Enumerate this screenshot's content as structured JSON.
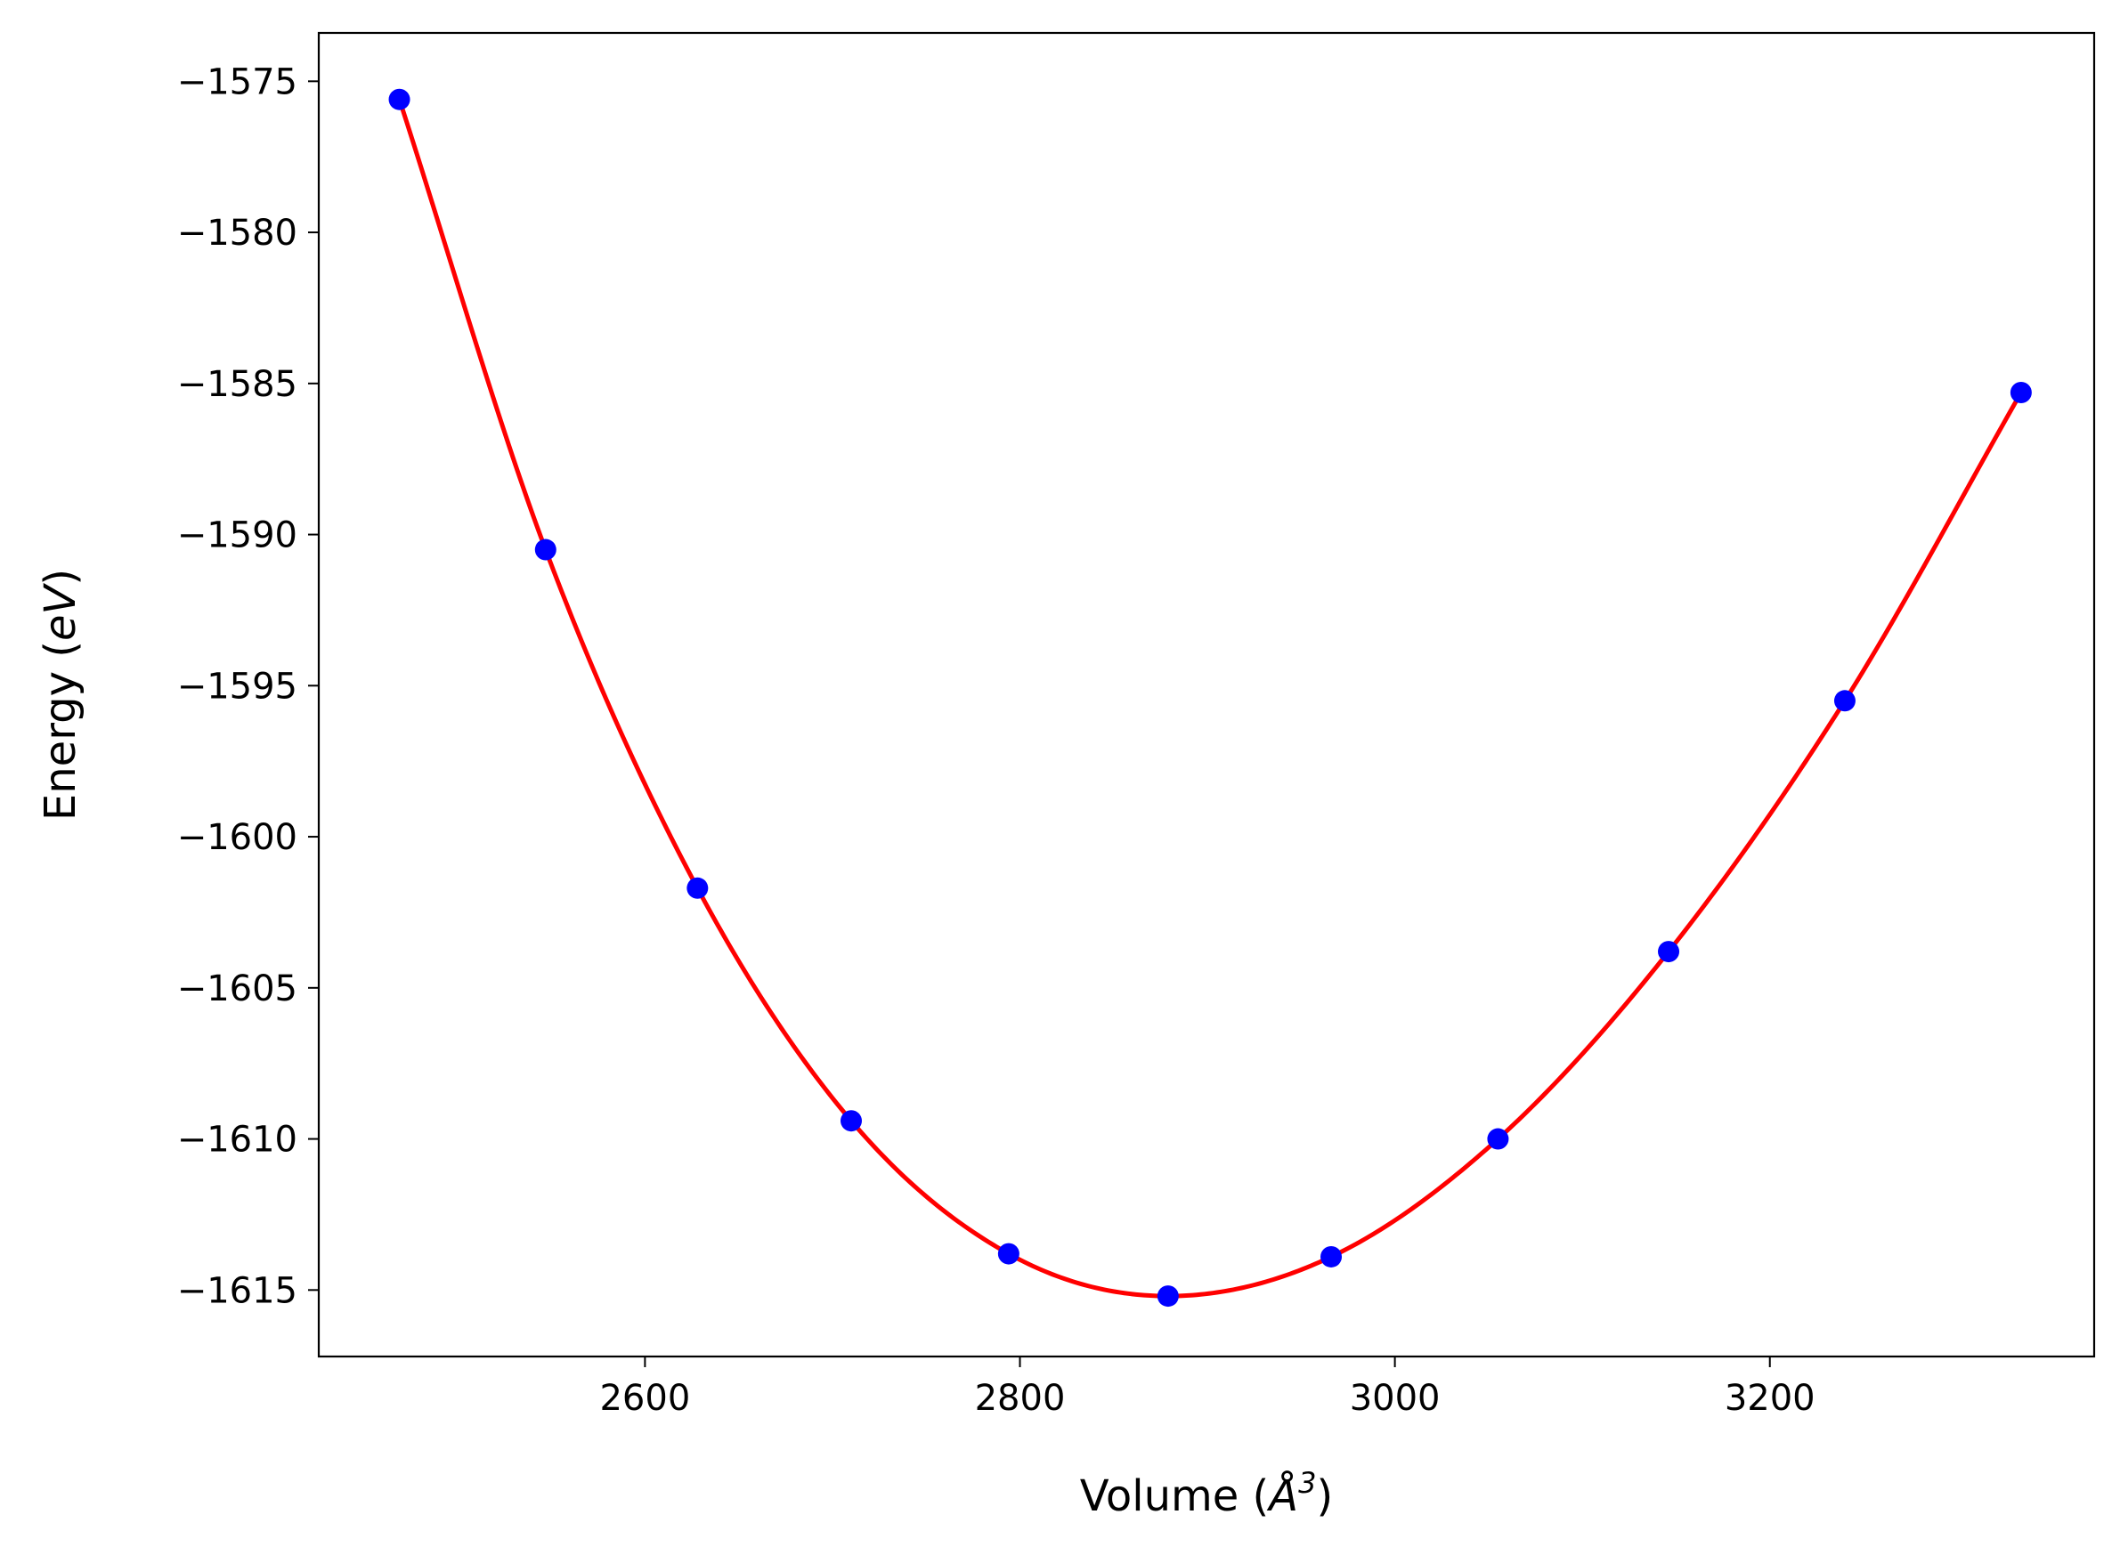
{
  "chart_data": {
    "type": "line",
    "xlabel": "Volume (Å³)",
    "xlabel_parts": {
      "base": "Volume (",
      "symbol": "Å",
      "exponent": "3",
      "close": ")"
    },
    "ylabel": "Energy (eV)",
    "ylabel_parts": {
      "base": "Energy (",
      "unit": "eV",
      "close": ")"
    },
    "title": "",
    "xlim": [
      2426,
      3373
    ],
    "ylim": [
      -1617.2,
      -1573.4
    ],
    "xticks": [
      2600,
      2800,
      3000,
      3200
    ],
    "xtick_labels": [
      "2600",
      "2800",
      "3000",
      "3200"
    ],
    "yticks": [
      -1575,
      -1580,
      -1585,
      -1590,
      -1595,
      -1600,
      -1605,
      -1610,
      -1615
    ],
    "ytick_labels": [
      "−1575",
      "−1580",
      "−1585",
      "−1590",
      "−1595",
      "−1600",
      "−1605",
      "−1610",
      "−1615"
    ],
    "grid": false,
    "legend": "none",
    "series": [
      {
        "type": "scatter",
        "color": "#0000ff",
        "x": [
          2469,
          2547,
          2628,
          2710,
          2794,
          2879,
          2966,
          3055,
          3146,
          3240,
          3334
        ],
        "y": [
          -1575.6,
          -1590.5,
          -1601.7,
          -1609.4,
          -1613.8,
          -1615.2,
          -1613.9,
          -1610.0,
          -1603.8,
          -1595.5,
          -1585.3
        ]
      },
      {
        "type": "line",
        "color": "#ff0000",
        "x": [
          2469,
          2547,
          2628,
          2710,
          2794,
          2879,
          2966,
          3055,
          3146,
          3240,
          3334
        ],
        "y": [
          -1575.6,
          -1590.5,
          -1601.7,
          -1609.4,
          -1613.8,
          -1615.2,
          -1613.9,
          -1610.0,
          -1603.8,
          -1595.5,
          -1585.3
        ]
      }
    ]
  }
}
